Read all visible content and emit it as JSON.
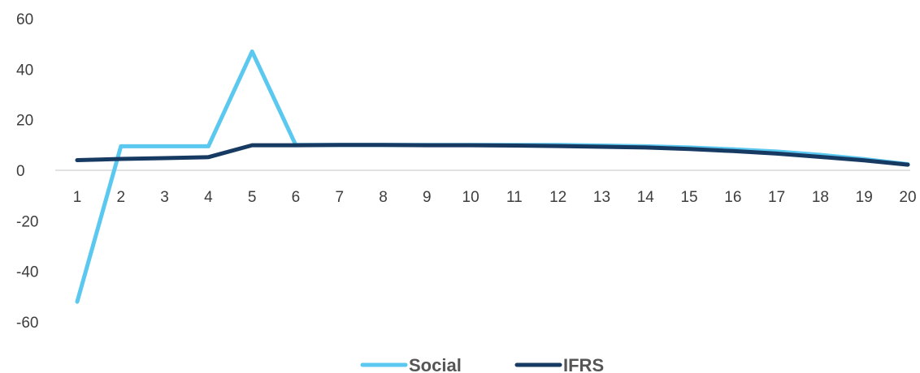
{
  "chart_data": {
    "type": "line",
    "x": [
      1,
      2,
      3,
      4,
      5,
      6,
      7,
      8,
      9,
      10,
      11,
      12,
      13,
      14,
      15,
      16,
      17,
      18,
      19,
      20
    ],
    "categories": [
      "1",
      "2",
      "3",
      "4",
      "5",
      "6",
      "7",
      "8",
      "9",
      "10",
      "11",
      "12",
      "13",
      "14",
      "15",
      "16",
      "17",
      "18",
      "19",
      "20"
    ],
    "ylim": [
      -60,
      60
    ],
    "yticks": [
      "60",
      "40",
      "20",
      "0",
      "-20",
      "-40",
      "-60"
    ],
    "grid": false,
    "legend_position": "bottom",
    "series": [
      {
        "name": "Social",
        "color": "#5bc8f0",
        "values": [
          -52,
          9.5,
          9.5,
          9.5,
          47,
          10,
          10,
          10,
          10,
          10,
          10,
          10,
          9.8,
          9.5,
          9,
          8.3,
          7.4,
          6.1,
          4.4,
          2.4
        ]
      },
      {
        "name": "IFRS",
        "color": "#173a63",
        "values": [
          4,
          4.5,
          4.8,
          5.2,
          9.9,
          9.9,
          10,
          10,
          9.9,
          9.9,
          9.8,
          9.6,
          9.3,
          9,
          8.4,
          7.6,
          6.6,
          5.3,
          3.9,
          2.2
        ]
      }
    ]
  }
}
